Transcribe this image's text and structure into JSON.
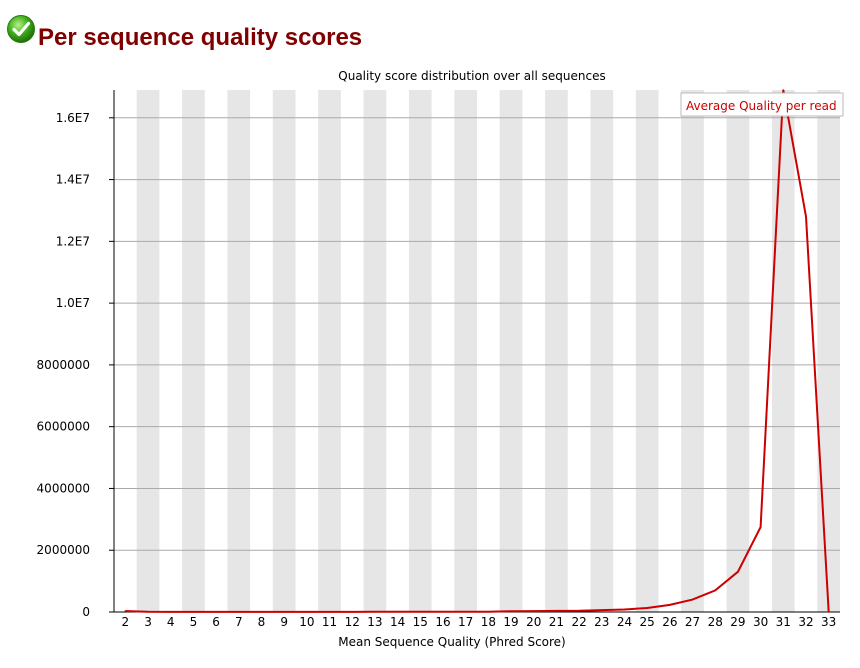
{
  "header": {
    "status_icon": "check-circle-icon",
    "title": "Per sequence quality scores"
  },
  "chart_data": {
    "type": "line",
    "title": "Quality score distribution over all sequences",
    "xlabel": "Mean Sequence Quality (Phred Score)",
    "ylabel": "",
    "categories": [
      "2",
      "3",
      "4",
      "5",
      "6",
      "7",
      "8",
      "9",
      "10",
      "11",
      "12",
      "13",
      "14",
      "15",
      "16",
      "17",
      "18",
      "19",
      "20",
      "21",
      "22",
      "23",
      "24",
      "25",
      "26",
      "27",
      "28",
      "29",
      "30",
      "31",
      "32",
      "33"
    ],
    "series": [
      {
        "name": "Average Quality per read",
        "color": "#cc0000",
        "values": [
          30000,
          5000,
          3000,
          3000,
          3000,
          3000,
          3000,
          3000,
          3000,
          3000,
          4000,
          5000,
          6000,
          7000,
          8000,
          9000,
          11000,
          25000,
          30000,
          35000,
          40000,
          60000,
          80000,
          130000,
          230000,
          400000,
          700000,
          1300000,
          2750000,
          16900000,
          12800000,
          0
        ]
      }
    ],
    "yticks": [
      0,
      2000000,
      4000000,
      6000000,
      8000000,
      10000000,
      12000000,
      14000000,
      16000000
    ],
    "ytick_labels": [
      "0",
      "2000000",
      "4000000",
      "6000000",
      "8000000",
      "1.0E7",
      "1.2E7",
      "1.4E7",
      "1.6E7"
    ],
    "ylim": [
      0,
      16900000
    ],
    "grid": true,
    "legend_position": "top-right",
    "colors": {
      "stripe": "#e6e6e6",
      "grid": "#aaaaaa",
      "line": "#cc0000"
    }
  }
}
